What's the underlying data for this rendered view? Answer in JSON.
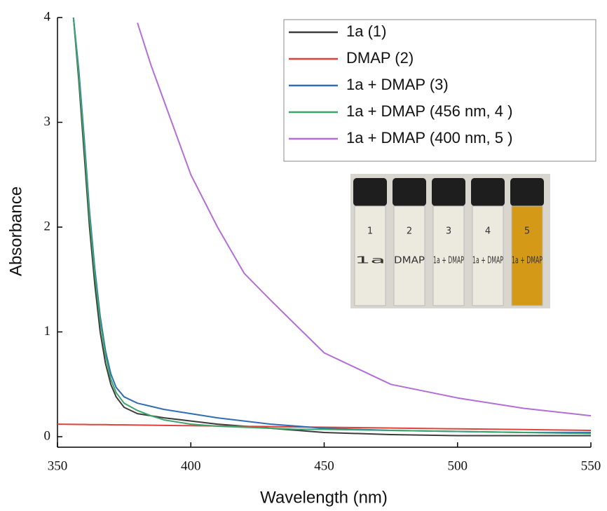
{
  "chart_data": {
    "type": "line",
    "xlabel": "Wavelength (nm)",
    "ylabel": "Absorbance",
    "x": [
      350,
      356,
      358,
      360,
      362,
      364,
      366,
      368,
      370,
      372,
      375,
      380,
      385,
      390,
      400,
      410,
      420,
      430,
      440,
      450,
      475,
      500,
      525,
      550
    ],
    "xlim": [
      350,
      550
    ],
    "xticks": [
      350,
      400,
      450,
      500,
      550
    ],
    "ylim": [
      0,
      4
    ],
    "yticks": [
      0,
      1,
      2,
      3,
      4
    ],
    "grid": false,
    "legend": "upper right",
    "series": [
      {
        "name": "1a (1)",
        "color": "#3c3c3c",
        "values": [
          null,
          4.0,
          3.4,
          2.7,
          2.0,
          1.45,
          1.0,
          0.7,
          0.5,
          0.38,
          0.28,
          0.22,
          0.2,
          0.18,
          0.15,
          0.12,
          0.1,
          0.08,
          0.06,
          0.04,
          0.02,
          0.01,
          0.01,
          0.01
        ]
      },
      {
        "name": "DMAP (2)",
        "color": "#e0413a",
        "values": [
          0.12,
          0.118,
          0.117,
          0.117,
          0.116,
          0.116,
          0.115,
          0.115,
          0.114,
          0.113,
          0.113,
          0.111,
          0.11,
          0.108,
          0.105,
          0.102,
          0.099,
          0.096,
          0.093,
          0.09,
          0.083,
          0.075,
          0.068,
          0.06
        ]
      },
      {
        "name": "1a + DMAP (3)",
        "color": "#2f6db5",
        "values": [
          null,
          4.0,
          3.5,
          2.85,
          2.15,
          1.6,
          1.15,
          0.82,
          0.6,
          0.47,
          0.38,
          0.32,
          0.29,
          0.26,
          0.22,
          0.18,
          0.15,
          0.12,
          0.1,
          0.08,
          0.06,
          0.05,
          0.04,
          0.04
        ]
      },
      {
        "name": "1a + DMAP (456 nm, 4 )",
        "color": "#3aa66a",
        "values": [
          null,
          4.0,
          3.45,
          2.8,
          2.1,
          1.55,
          1.1,
          0.78,
          0.55,
          0.42,
          0.32,
          0.25,
          0.2,
          0.16,
          0.12,
          0.1,
          0.09,
          0.08,
          0.07,
          0.07,
          0.06,
          0.05,
          0.04,
          0.03
        ]
      },
      {
        "name": "1a + DMAP (400 nm, 5 )",
        "color": "#b36fd6",
        "values": [
          null,
          null,
          null,
          null,
          null,
          null,
          null,
          null,
          null,
          null,
          null,
          3.95,
          3.55,
          3.2,
          2.5,
          2.0,
          1.56,
          1.3,
          1.05,
          0.8,
          0.5,
          0.37,
          0.27,
          0.2
        ]
      }
    ],
    "vials": [
      {
        "number": "1",
        "label": "1a"
      },
      {
        "number": "2",
        "label": "DMAP"
      },
      {
        "number": "3",
        "label": "1a + DMAP"
      },
      {
        "number": "4",
        "label": "1a + DMAP"
      },
      {
        "number": "5",
        "label": "1a + DMAP"
      }
    ]
  }
}
